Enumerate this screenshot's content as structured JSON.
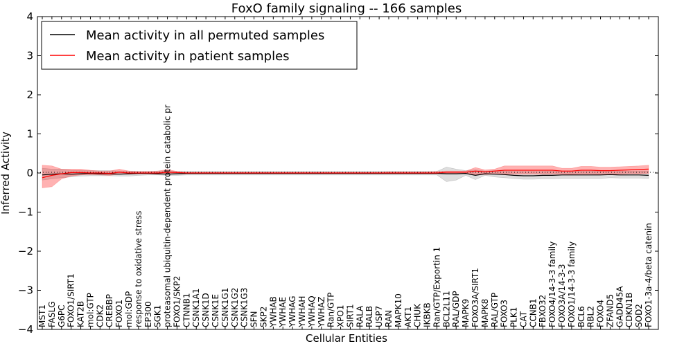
{
  "chart_data": {
    "type": "line",
    "title": "FoxO family signaling -- 166 samples",
    "xlabel": "Cellular Entities",
    "ylabel": "Inferred Activity",
    "ylim": [
      -4,
      4
    ],
    "yticks": [
      -4,
      -3,
      -2,
      -1,
      0,
      1,
      2,
      3,
      4
    ],
    "ytick_labels": [
      "−4",
      "−3",
      "−2",
      "−1",
      "0",
      "1",
      "2",
      "3",
      "4"
    ],
    "legend_position": "top-left",
    "categories": [
      "MST1",
      "FASLG",
      "G6PC",
      "FOXO1/SIRT1",
      "KAT2B",
      "mol:GTP",
      "CDK2",
      "CREBBP",
      "FOXO1",
      "mol:GDP",
      "response to oxidative stress",
      "EP300",
      "SGK1",
      "proteasomal ubiquitin-dependent protein catabolic pr",
      "FOXO1/SKP2",
      "CTNNB1",
      "CSNK1A1",
      "CSNK1D",
      "CSNK1E",
      "CSNK1G1",
      "CSNK1G2",
      "CSNK1G3",
      "SFN",
      "SKP2",
      "YWHAB",
      "YWHAE",
      "YWHAG",
      "YWHAH",
      "YWHAQ",
      "YWHAZ",
      "Ran/GTP",
      "XPO1",
      "SIRT1",
      "RALA",
      "RALB",
      "USP7",
      "RAN",
      "MAPK10",
      "AKT1",
      "CHUK",
      "IKBKB",
      "Ran/GTP/Exportin 1",
      "BCL2L11",
      "RAL/GDP",
      "MAPK9",
      "FOXO3A/SIRT1",
      "MAPK8",
      "RAL/GTP",
      "FOXO3",
      "PLK1",
      "CAT",
      "CCNB1",
      "FBXO32",
      "FOXO4/14-3-3 family",
      "FOXO3A/14-3-3",
      "FOXO1/14-3-3 family",
      "BCL6",
      "RBL2",
      "FOXO4",
      "ZFAND5",
      "GADD45A",
      "CDKN1B",
      "SOD2",
      "FOXO1-3a-4/beta catenin"
    ],
    "series": [
      {
        "name": "Mean activity in all permuted samples",
        "color": "#000000",
        "values": [
          -0.05,
          -0.03,
          -0.02,
          -0.03,
          -0.02,
          -0.01,
          -0.02,
          -0.02,
          -0.03,
          -0.02,
          -0.01,
          -0.01,
          -0.02,
          -0.03,
          -0.02,
          -0.01,
          -0.01,
          -0.01,
          -0.01,
          -0.01,
          -0.01,
          -0.01,
          -0.01,
          -0.01,
          -0.01,
          -0.01,
          -0.01,
          -0.01,
          -0.01,
          -0.01,
          -0.01,
          -0.01,
          -0.01,
          -0.01,
          -0.01,
          -0.01,
          -0.01,
          -0.01,
          -0.01,
          -0.01,
          -0.01,
          -0.01,
          -0.02,
          -0.02,
          -0.01,
          -0.06,
          -0.02,
          -0.03,
          -0.04,
          -0.06,
          -0.07,
          -0.07,
          -0.06,
          -0.06,
          -0.05,
          -0.05,
          -0.05,
          -0.05,
          -0.05,
          -0.04,
          -0.05,
          -0.05,
          -0.05,
          -0.06
        ],
        "band_low": [
          -0.18,
          -0.15,
          -0.12,
          -0.1,
          -0.08,
          -0.07,
          -0.07,
          -0.07,
          -0.08,
          -0.08,
          -0.06,
          -0.05,
          -0.05,
          -0.06,
          -0.06,
          -0.05,
          -0.05,
          -0.05,
          -0.05,
          -0.05,
          -0.05,
          -0.05,
          -0.05,
          -0.05,
          -0.05,
          -0.05,
          -0.05,
          -0.05,
          -0.05,
          -0.05,
          -0.05,
          -0.05,
          -0.05,
          -0.05,
          -0.05,
          -0.05,
          -0.05,
          -0.05,
          -0.05,
          -0.05,
          -0.05,
          -0.05,
          -0.22,
          -0.18,
          -0.06,
          -0.17,
          -0.06,
          -0.1,
          -0.12,
          -0.14,
          -0.16,
          -0.16,
          -0.15,
          -0.15,
          -0.14,
          -0.14,
          -0.14,
          -0.14,
          -0.14,
          -0.12,
          -0.13,
          -0.13,
          -0.13,
          -0.14
        ],
        "band_high": [
          0.12,
          0.1,
          0.1,
          0.07,
          0.06,
          0.06,
          0.06,
          0.06,
          0.05,
          0.05,
          0.04,
          0.04,
          0.05,
          0.05,
          0.04,
          0.04,
          0.04,
          0.04,
          0.04,
          0.04,
          0.04,
          0.04,
          0.04,
          0.04,
          0.04,
          0.04,
          0.04,
          0.04,
          0.04,
          0.04,
          0.04,
          0.04,
          0.04,
          0.04,
          0.04,
          0.04,
          0.04,
          0.04,
          0.04,
          0.04,
          0.04,
          0.04,
          0.15,
          0.1,
          0.06,
          0.08,
          0.05,
          0.06,
          0.05,
          0.04,
          0.04,
          0.04,
          0.04,
          0.05,
          0.05,
          0.05,
          0.05,
          0.05,
          0.05,
          0.05,
          0.05,
          0.05,
          0.05,
          0.05
        ]
      },
      {
        "name": "Mean activity in patient samples",
        "color": "#ff0000",
        "values": [
          -0.12,
          -0.06,
          -0.02,
          0.01,
          0.01,
          0.0,
          0.0,
          -0.01,
          0.02,
          0.0,
          0.0,
          0.0,
          0.0,
          0.02,
          0.01,
          0.0,
          0.0,
          0.0,
          0.0,
          0.0,
          0.0,
          0.0,
          0.0,
          0.0,
          0.0,
          0.0,
          0.0,
          0.0,
          0.0,
          0.0,
          0.0,
          0.0,
          0.0,
          0.0,
          0.0,
          0.0,
          0.0,
          0.0,
          0.0,
          0.0,
          0.0,
          0.0,
          0.02,
          0.02,
          0.02,
          0.05,
          0.03,
          0.05,
          0.07,
          0.07,
          0.07,
          0.07,
          0.07,
          0.07,
          0.05,
          0.05,
          0.07,
          0.07,
          0.06,
          0.06,
          0.07,
          0.08,
          0.09,
          0.1
        ],
        "band_low": [
          -0.38,
          -0.35,
          -0.15,
          -0.08,
          -0.05,
          -0.04,
          -0.05,
          -0.06,
          -0.03,
          -0.03,
          -0.02,
          -0.02,
          -0.03,
          -0.03,
          -0.02,
          -0.01,
          -0.01,
          -0.01,
          -0.01,
          -0.01,
          -0.01,
          -0.01,
          -0.01,
          -0.01,
          -0.01,
          -0.01,
          -0.01,
          -0.01,
          -0.01,
          -0.01,
          -0.01,
          -0.01,
          -0.01,
          -0.01,
          -0.01,
          -0.01,
          -0.01,
          -0.01,
          -0.01,
          -0.01,
          -0.01,
          -0.01,
          -0.01,
          -0.01,
          -0.02,
          -0.04,
          -0.04,
          -0.03,
          -0.03,
          -0.03,
          -0.03,
          -0.03,
          -0.03,
          -0.03,
          -0.03,
          -0.04,
          -0.03,
          -0.03,
          -0.04,
          -0.03,
          -0.03,
          -0.02,
          -0.02,
          -0.01
        ],
        "band_high": [
          0.2,
          0.18,
          0.1,
          0.1,
          0.1,
          0.07,
          0.05,
          0.05,
          0.1,
          0.05,
          0.04,
          0.04,
          0.05,
          0.09,
          0.04,
          0.02,
          0.02,
          0.02,
          0.02,
          0.02,
          0.02,
          0.02,
          0.02,
          0.02,
          0.02,
          0.02,
          0.02,
          0.02,
          0.02,
          0.02,
          0.02,
          0.02,
          0.02,
          0.02,
          0.02,
          0.02,
          0.03,
          0.03,
          0.03,
          0.03,
          0.03,
          0.04,
          0.05,
          0.05,
          0.05,
          0.14,
          0.08,
          0.1,
          0.18,
          0.18,
          0.18,
          0.18,
          0.18,
          0.18,
          0.12,
          0.12,
          0.17,
          0.17,
          0.15,
          0.15,
          0.16,
          0.17,
          0.18,
          0.2
        ]
      }
    ]
  }
}
